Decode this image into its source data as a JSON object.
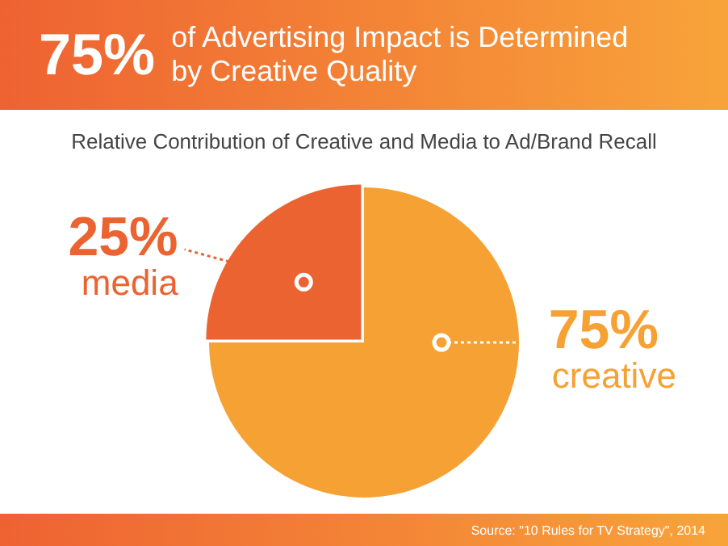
{
  "chart_data": {
    "type": "pie",
    "title": "75% of Advertising Impact is Determined by Creative Quality",
    "subtitle": "Relative Contribution of Creative and Media to Ad/Brand Recall",
    "categories": [
      "creative",
      "media"
    ],
    "values": [
      75,
      25
    ],
    "colors": [
      "#f6a133",
      "#eb6330"
    ],
    "value_labels": [
      "75%",
      "25%"
    ],
    "legend": false,
    "annotations": [
      "Source: \"10 Rules for TV Strategy\", 2014"
    ]
  }
}
